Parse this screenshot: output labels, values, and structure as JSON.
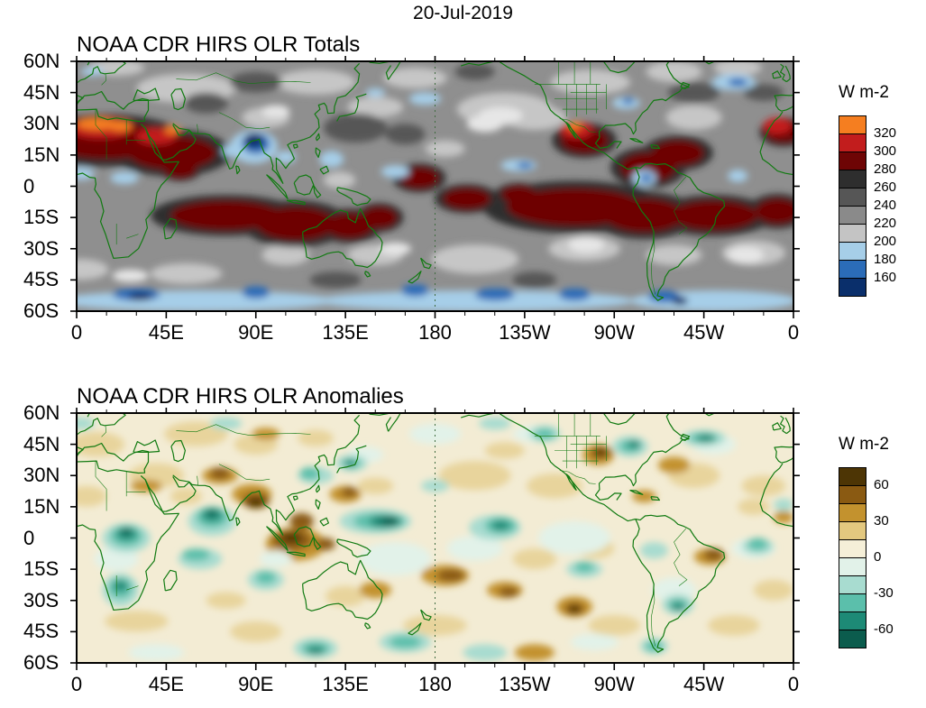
{
  "page": {
    "date_title": "20-Jul-2019"
  },
  "axes": {
    "lat_labels": [
      "60N",
      "45N",
      "30N",
      "15N",
      "0",
      "15S",
      "30S",
      "45S",
      "60S"
    ],
    "lon_labels": [
      "0",
      "45E",
      "90E",
      "135E",
      "180",
      "135W",
      "90W",
      "45W",
      "0"
    ]
  },
  "panels": {
    "totals": {
      "title": "NOAA CDR HIRS OLR Totals",
      "colorbar": {
        "label": "W m-2",
        "box_colors_top_to_bottom": [
          "#f57e20",
          "#c21d1d",
          "#6e0505",
          "#2e2e2e",
          "#565656",
          "#8a8a8a",
          "#c4c4c4",
          "#a6cee8",
          "#2b6cb8",
          "#0a2f6b"
        ],
        "ticks": [
          {
            "label": "320",
            "boundary": 1
          },
          {
            "label": "300",
            "boundary": 2
          },
          {
            "label": "280",
            "boundary": 3
          },
          {
            "label": "260",
            "boundary": 4
          },
          {
            "label": "240",
            "boundary": 5
          },
          {
            "label": "220",
            "boundary": 6
          },
          {
            "label": "200",
            "boundary": 7
          },
          {
            "label": "180",
            "boundary": 8
          },
          {
            "label": "160",
            "boundary": 9
          }
        ]
      }
    },
    "anomalies": {
      "title": "NOAA CDR HIRS OLR Anomalies",
      "colorbar": {
        "label": "W m-2",
        "box_colors_top_to_bottom": [
          "#4d3505",
          "#8a5a12",
          "#c3922e",
          "#e3c87f",
          "#f5efd8",
          "#e2f2e9",
          "#a8dcd0",
          "#5bbfab",
          "#1d8a76",
          "#0b5c4d"
        ],
        "ticks": [
          {
            "label": "60",
            "boundary": 1
          },
          {
            "label": "30",
            "boundary": 3
          },
          {
            "label": "0",
            "boundary": 5
          },
          {
            "label": "-30",
            "boundary": 7
          },
          {
            "label": "-60",
            "boundary": 9
          }
        ]
      }
    }
  },
  "chart_data": [
    {
      "type": "heatmap",
      "title": "NOAA CDR HIRS OLR Totals",
      "date": "20-Jul-2019",
      "units": "W m-2",
      "domain": {
        "lat": [
          "60S",
          "60N"
        ],
        "lon": [
          "0E",
          "360E, dateline-centered (180 at middle)"
        ]
      },
      "x_tick_labels": [
        "0",
        "45E",
        "90E",
        "135E",
        "180",
        "135W",
        "90W",
        "45W",
        "0"
      ],
      "y_tick_labels": [
        "60N",
        "45N",
        "30N",
        "15N",
        "0",
        "15S",
        "30S",
        "45S",
        "60S"
      ],
      "colorbar": {
        "levels": [
          160,
          180,
          200,
          220,
          240,
          260,
          280,
          300,
          320
        ],
        "colors_low_to_high": [
          "#0a2f6b",
          "#2b6cb8",
          "#a6cee8",
          "#c4c4c4",
          "#8a8a8a",
          "#565656",
          "#2e2e2e",
          "#6e0505",
          "#c21d1d",
          "#f57e20"
        ],
        "orientation": "vertical, right side, highest value at top"
      },
      "notable_features": [
        "OLR maxima above 320 W m-2 (orange) over the Sahara / Arabian Peninsula and over northern Mexico - southwestern North America",
        "Broad dark-red band (280-300 W m-2) along the subtropics: Sahel-Arabia, southern Indian Ocean, northern Australia, southeastern Pacific, South Atlantic",
        "Deep convection minimum below 180 W m-2 (dark blue) over the Bay of Bengal / northeast India",
        "Light-blue low OLR along the Southern Ocean storm track (45S-60S) and scattered ITCZ cloud clusters",
        "Gray mid-range OLR (200-280 W m-2) over most mid-latitudes, with green continental outlines overlaid"
      ]
    },
    {
      "type": "heatmap",
      "title": "NOAA CDR HIRS OLR Anomalies",
      "date": "20-Jul-2019",
      "units": "W m-2",
      "domain": {
        "lat": [
          "60S",
          "60N"
        ],
        "lon": [
          "0E",
          "360E, dateline-centered (180 at middle)"
        ]
      },
      "x_tick_labels": [
        "0",
        "45E",
        "90E",
        "135E",
        "180",
        "135W",
        "90W",
        "45W",
        "0"
      ],
      "y_tick_labels": [
        "60N",
        "45N",
        "30N",
        "15N",
        "0",
        "15S",
        "30S",
        "45S",
        "60S"
      ],
      "colorbar": {
        "levels": [
          -60,
          -45,
          -30,
          -15,
          0,
          15,
          30,
          45,
          60
        ],
        "colors_low_to_high": [
          "#0b5c4d",
          "#1d8a76",
          "#5bbfab",
          "#a8dcd0",
          "#e2f2e9",
          "#f5efd8",
          "#e3c87f",
          "#c3922e",
          "#8a5a12",
          "#4d3505"
        ],
        "orientation": "vertical, right side, highest value at top"
      },
      "notable_features": [
        "Strong positive (brown, suppressed convection) anomalies over the Bay of Bengal / Myanmar, the Maritime Continent, and the central United States",
        "Negative (teal/green, enhanced convection) anomalies along the west-central Pacific ITCZ near 5N-15N, over central and southern Africa, and the Arabian Sea / India region",
        "Alternating teal and tan anomaly streaks across the Southern Ocean and mid-latitude storm tracks",
        "Near-zero anomalies (cream) over much of the subtropical oceans"
      ]
    }
  ]
}
